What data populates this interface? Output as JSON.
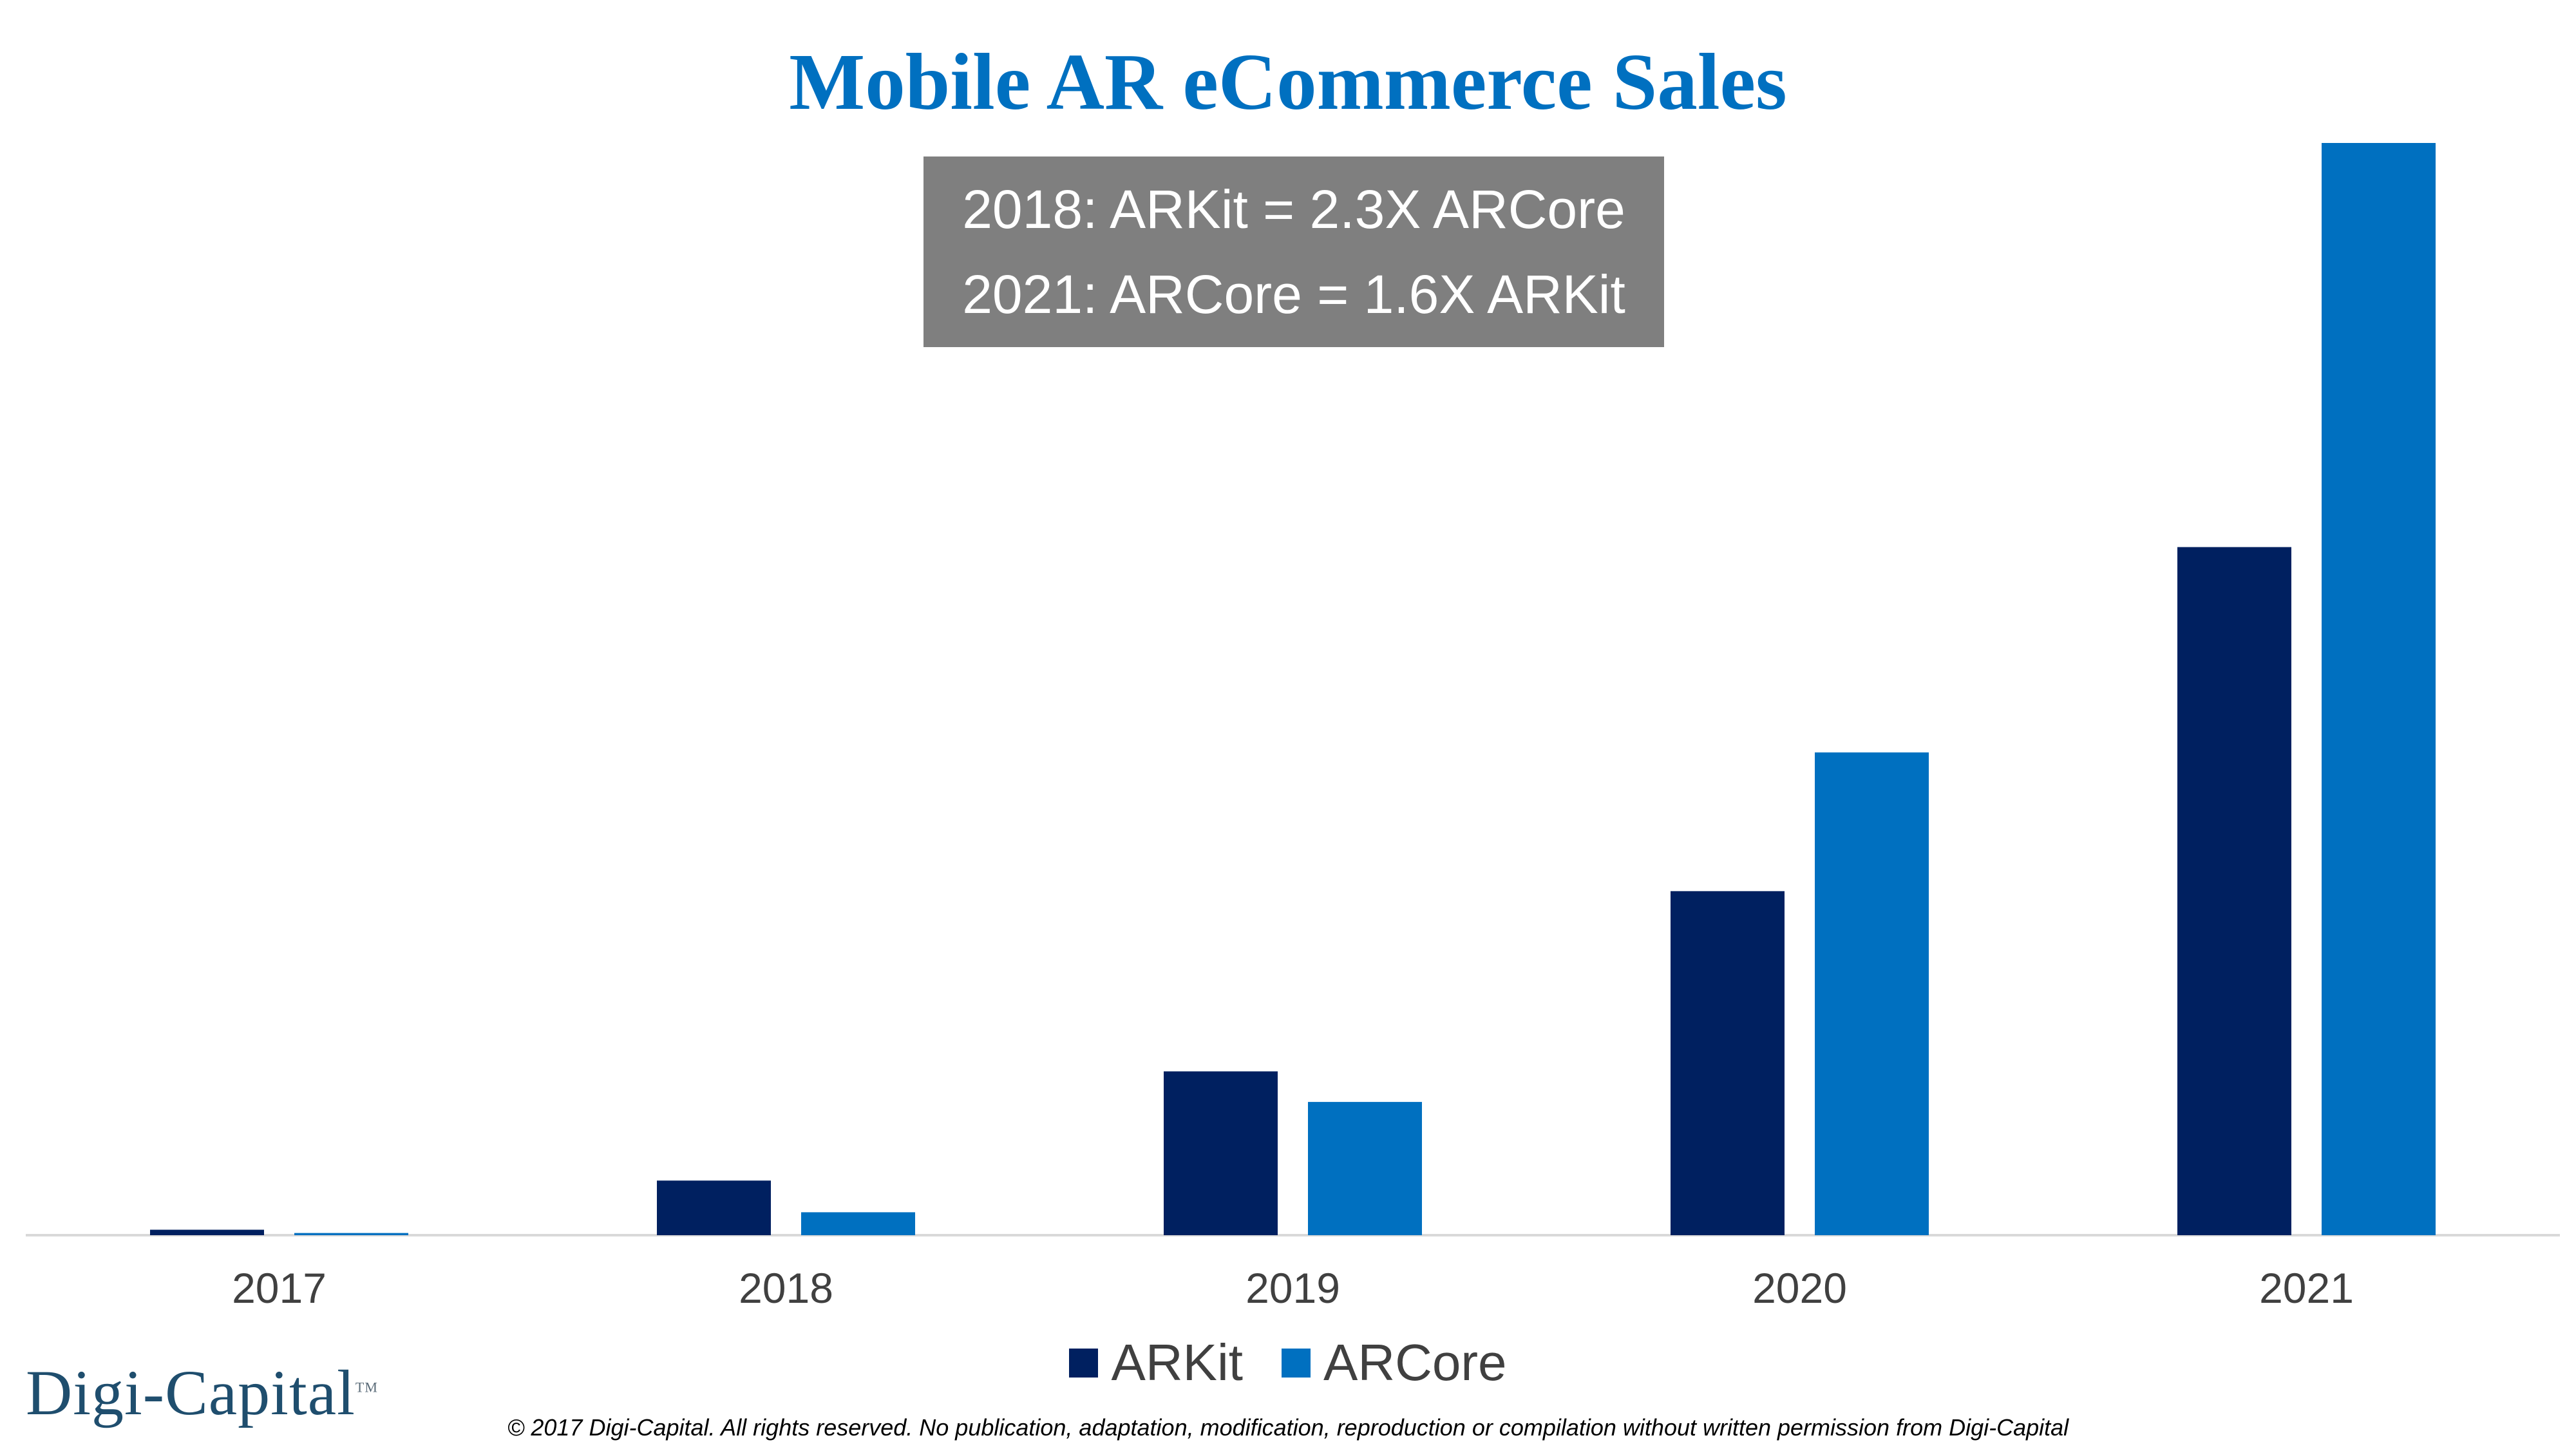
{
  "title": "Mobile AR eCommerce Sales",
  "callout": {
    "line1": "2018: ARKit = 2.3X ARCore",
    "line2": "2021: ARCore = 1.6X ARKit"
  },
  "logo": {
    "text": "Digi-Capital",
    "tm": "TM"
  },
  "footer": "© 2017 Digi-Capital. All rights reserved. No publication, adaptation, modification, reproduction or compilation without written permission from Digi-Capital",
  "colors": {
    "arkit": "#002060",
    "arcore": "#0070C0",
    "title": "#0070C0",
    "callout_bg": "#7f7f7f"
  },
  "chart_data": {
    "type": "bar",
    "categories": [
      "2017",
      "2018",
      "2019",
      "2020",
      "2021"
    ],
    "series": [
      {
        "name": "ARKit",
        "color": "#002060",
        "values": [
          0.5,
          5,
          15,
          31.5,
          63
        ]
      },
      {
        "name": "ARCore",
        "color": "#0070C0",
        "values": [
          0.2,
          2.1,
          12.2,
          44.2,
          100
        ]
      }
    ],
    "title": "Mobile AR eCommerce Sales",
    "xlabel": "",
    "ylabel": "",
    "ylim": [
      0,
      100
    ],
    "grid": false,
    "legend": "bottom-center"
  }
}
